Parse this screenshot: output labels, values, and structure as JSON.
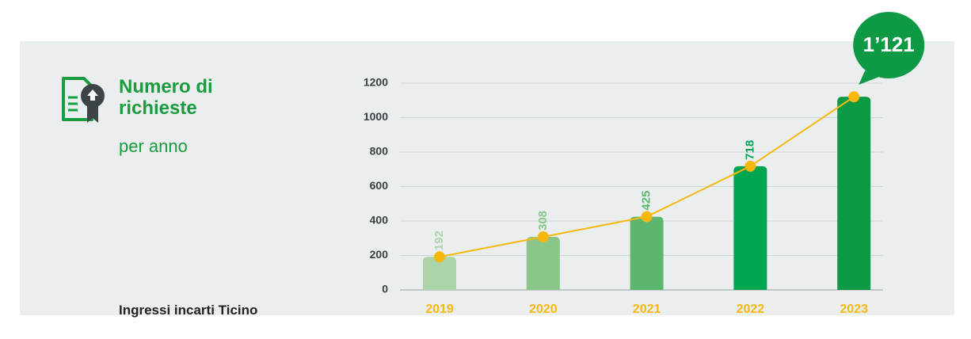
{
  "chart_data": {
    "type": "bar",
    "title": "Numero di richieste",
    "subtitle": "per anno",
    "caption": "Ingressi incarti Ticino",
    "categories": [
      "2019",
      "2020",
      "2021",
      "2022",
      "2023"
    ],
    "values": [
      192,
      308,
      425,
      718,
      1121
    ],
    "value_labels": [
      "192",
      "308",
      "425",
      "718",
      "1’121"
    ],
    "colors": [
      "#abd4a9",
      "#8ac58a",
      "#5db66d",
      "#00a550",
      "#0e9a44"
    ],
    "line_color": "#f6b80f",
    "ylim": [
      0,
      1200
    ],
    "yticks": [
      0,
      200,
      400,
      600,
      800,
      1000,
      1200
    ],
    "grid": true
  }
}
